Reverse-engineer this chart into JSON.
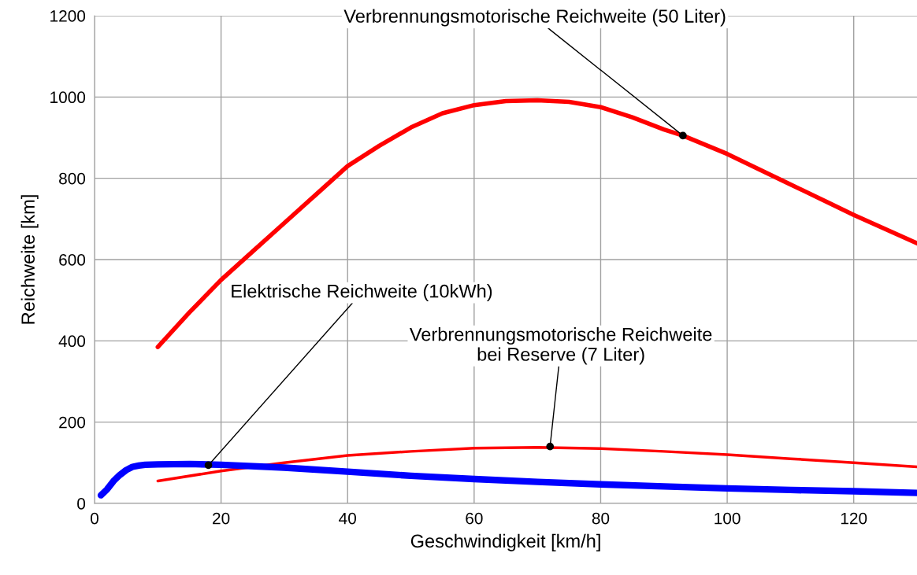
{
  "chart_data": {
    "type": "line",
    "xlabel": "Geschwindigkeit [km/h]",
    "ylabel": "Reichweite [km]",
    "xlim": [
      0,
      130
    ],
    "xticks": [
      0,
      20,
      40,
      60,
      80,
      100,
      120
    ],
    "ylim": [
      0,
      1200
    ],
    "yticks": [
      0,
      200,
      400,
      600,
      800,
      1000,
      1200
    ],
    "grid": true,
    "legend": false,
    "marker": "none",
    "line_style": "solid",
    "series": [
      {
        "color": "#ff0000",
        "x": [
          10,
          15,
          20,
          25,
          30,
          35,
          40,
          45,
          50,
          55,
          60,
          65,
          70,
          75,
          80,
          85,
          90,
          93,
          100,
          110,
          120,
          130
        ],
        "values": [
          385,
          470,
          550,
          620,
          690,
          760,
          830,
          880,
          925,
          960,
          980,
          990,
          992,
          988,
          975,
          950,
          920,
          905,
          860,
          785,
          710,
          640
        ]
      },
      {
        "color": "#ff0000",
        "x": [
          10,
          20,
          30,
          40,
          50,
          60,
          70,
          80,
          90,
          100,
          110,
          120,
          130
        ],
        "values": [
          55,
          80,
          100,
          118,
          128,
          136,
          138,
          135,
          128,
          120,
          110,
          100,
          90
        ]
      },
      {
        "color": "#0000ff",
        "x": [
          1,
          2,
          3,
          4,
          5,
          6,
          7,
          8,
          10,
          15,
          20,
          30,
          40,
          50,
          60,
          70,
          80,
          90,
          100,
          110,
          120,
          130
        ],
        "values": [
          20,
          35,
          55,
          70,
          82,
          90,
          93,
          95,
          96,
          97,
          95,
          88,
          78,
          68,
          60,
          53,
          47,
          42,
          37,
          33,
          30,
          26
        ]
      }
    ],
    "annotations": [
      {
        "text": "Verbrennungsmotorische Reichweite (50 Liter)",
        "x": 93,
        "y": 905
      },
      {
        "text": "Elektrische Reichweite (10kWh)",
        "x": 18,
        "y": 94
      },
      {
        "text": "Verbrennungsmotorische Reichweite\nbei Reserve (7 Liter)",
        "x": 72,
        "y": 140
      }
    ]
  }
}
